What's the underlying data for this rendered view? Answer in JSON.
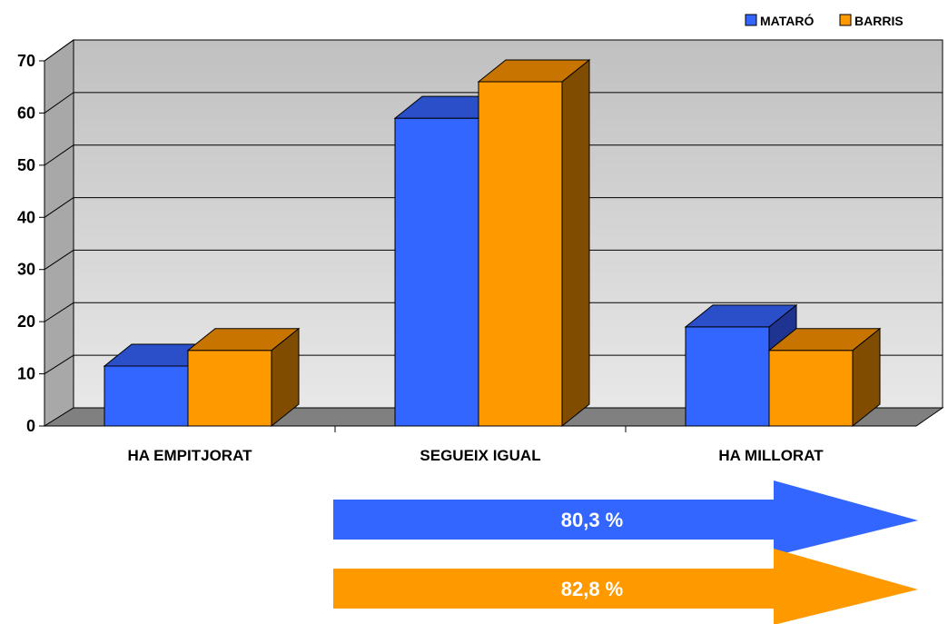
{
  "chart_data": {
    "type": "bar",
    "categories": [
      "HA EMPITJORAT",
      "SEGUEIX IGUAL",
      "HA MILLORAT"
    ],
    "series": [
      {
        "name": "MATARÓ",
        "values": [
          11.5,
          59,
          19
        ]
      },
      {
        "name": "BARRIS",
        "values": [
          14.5,
          66,
          14.5
        ]
      }
    ],
    "title": "",
    "xlabel": "",
    "ylabel": "",
    "ylim": [
      0,
      70
    ],
    "yticks": [
      0,
      10,
      20,
      30,
      40,
      50,
      60,
      70
    ],
    "grid": true,
    "three_d": true,
    "legend_position": "top-right",
    "colors": {
      "series": [
        "#3366FF",
        "#FF9900"
      ],
      "series_top": [
        "#2A4FC9",
        "#C77400"
      ],
      "series_side": [
        "#1F3390",
        "#7F4C00"
      ],
      "wall": [
        "#C0C0C0",
        "#E8E8E8"
      ],
      "floor": "#808080"
    },
    "annotations": [
      {
        "text": "80,3 %",
        "color": "#3366FF"
      },
      {
        "text": "82,8 %",
        "color": "#FF9900"
      }
    ]
  }
}
